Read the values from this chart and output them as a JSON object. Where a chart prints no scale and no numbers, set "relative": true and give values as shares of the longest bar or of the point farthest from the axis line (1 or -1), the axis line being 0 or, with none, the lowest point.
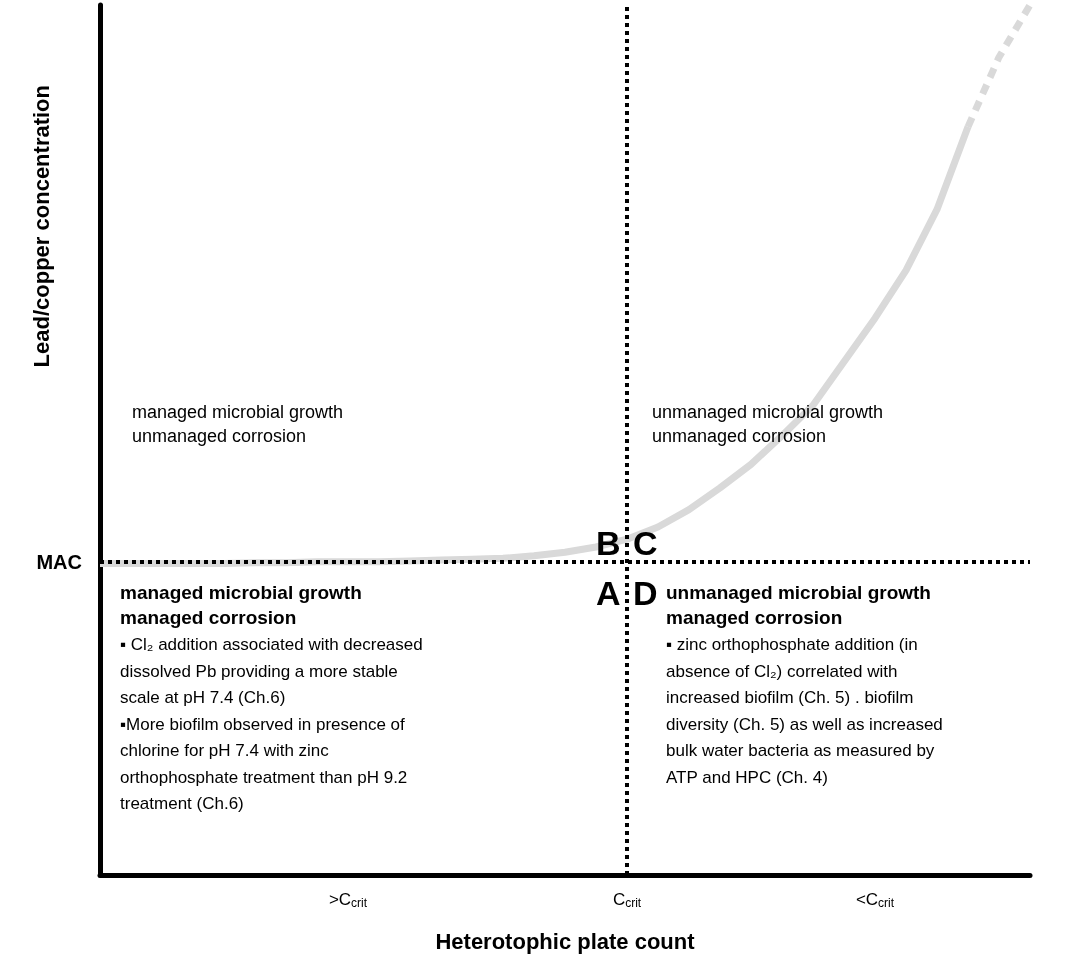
{
  "chart_data": {
    "type": "line",
    "relative": true,
    "marker": "none",
    "xlabel": "Heterotophic plate count",
    "ylabel": "Lead/copper concentration",
    "categories": [
      null,
      null,
      null,
      null,
      null,
      null,
      null,
      null,
      ">C$_{crit}$",
      null,
      null,
      null,
      null,
      null,
      null,
      null,
      null,
      "C$_{crit}$",
      null,
      null,
      null,
      null,
      null,
      null,
      null,
      "<C$_{crit}$",
      null,
      null,
      null,
      null,
      null
    ],
    "series": [
      {
        "color": "#d9d9d9",
        "line_style": "solid",
        "values": [
          0.358,
          0.358,
          0.358,
          0.358,
          0.358,
          0.359,
          0.359,
          0.36,
          0.36,
          0.36,
          0.361,
          0.362,
          0.363,
          0.364,
          0.367,
          0.371,
          0.377,
          0.386,
          0.4,
          0.42,
          0.445,
          0.472,
          0.505,
          0.54,
          0.59,
          0.64,
          0.695,
          0.765,
          0.86,
          null,
          null
        ]
      },
      {
        "color": "#d9d9d9",
        "line_style": "dashed",
        "values": [
          null,
          null,
          null,
          null,
          null,
          null,
          null,
          null,
          null,
          null,
          null,
          null,
          null,
          null,
          null,
          null,
          null,
          null,
          null,
          null,
          null,
          null,
          null,
          null,
          null,
          null,
          null,
          null,
          0.86,
          0.94,
          1.0
        ]
      }
    ],
    "ref_lines": [
      {
        "axis": "y",
        "value": 0.358,
        "label": "MAC",
        "color": "#000000",
        "line_style": "dotted"
      },
      {
        "axis": "x",
        "value": "C$_{crit}$",
        "label": null,
        "color": "#000000",
        "line_style": "dotted"
      }
    ],
    "annotations": [
      "managed microbial growth\nunmanaged corrosion",
      "unmanaged microbial growth\nunmanaged corrosion",
      "managed microbial growth\nmanaged corrosion",
      "▪ Cl₂ addition associated with decreased\ndissolved Pb providing a more stable\nscale at pH 7.4 (Ch.6)\n▪More biofilm observed in presence of\nchlorine for pH 7.4 with zinc\northophosphate treatment than pH 9.2\ntreatment (Ch.6)",
      "unmanaged microbial growth\nmanaged corrosion",
      "▪ zinc orthophosphate addition (in\nabsence of Cl₂) correlated with\nincreased biofilm (Ch. 5) . biofilm\ndiversity (Ch. 5) as well as increased\nbulk water bacteria as measured by\nATP and HPC (Ch. 4)",
      "B",
      "C",
      "A",
      "D"
    ]
  }
}
